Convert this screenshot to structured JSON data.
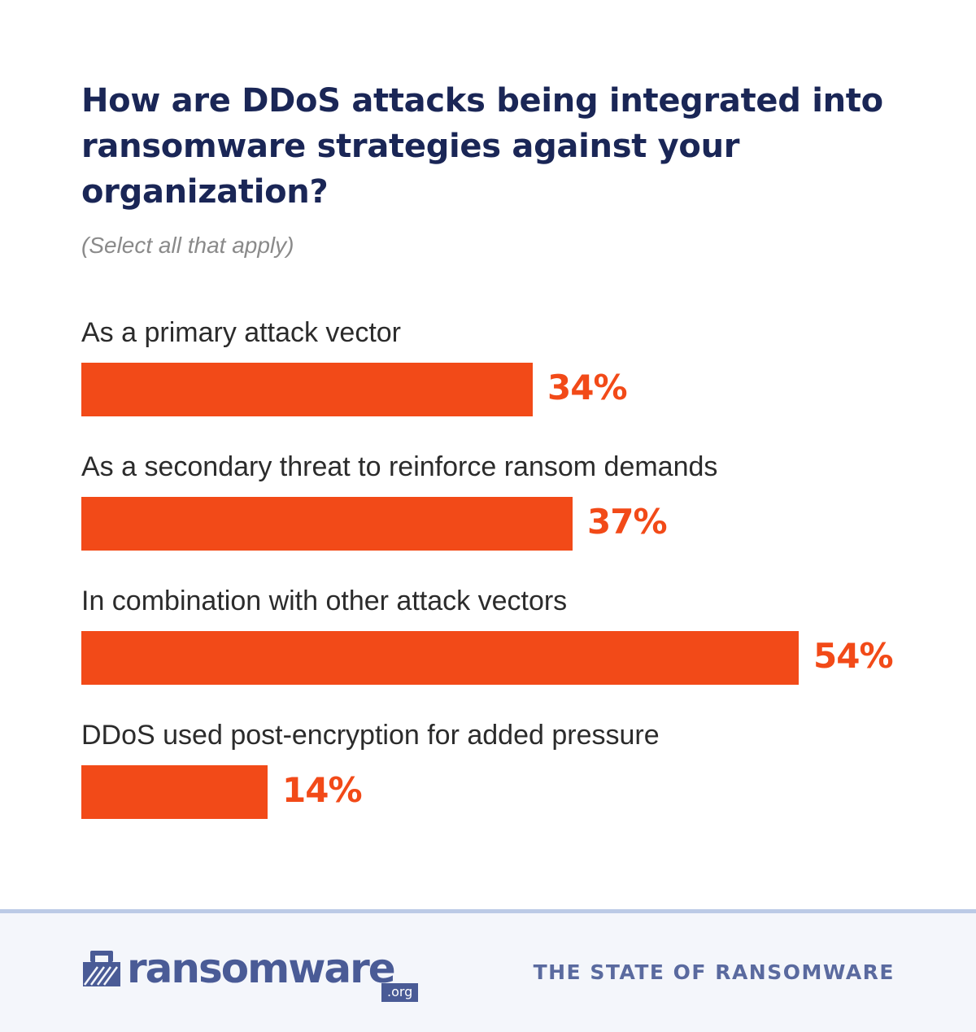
{
  "header": {
    "title": "How are DDoS attacks being integrated into ransomware strategies against your organization?",
    "subtitle": "(Select all that apply)"
  },
  "chart_data": {
    "type": "bar",
    "orientation": "horizontal",
    "title": "How are DDoS attacks being integrated into ransomware strategies against your organization?",
    "subtitle": "(Select all that apply)",
    "categories": [
      "As a primary attack vector",
      "As a secondary threat to reinforce ransom demands",
      "In combination with other attack vectors",
      "DDoS used post-encryption for added pressure"
    ],
    "values": [
      34,
      37,
      54,
      14
    ],
    "value_labels": [
      "34%",
      "37%",
      "54%",
      "14%"
    ],
    "unit": "%",
    "xlim": [
      0,
      54
    ],
    "grid": false,
    "legend": "none",
    "bar_color": "#f24a18"
  },
  "footer": {
    "logo_text": "ransomware",
    "logo_tld": ".org",
    "report_name": "THE STATE OF RANSOMWARE"
  },
  "colors": {
    "accent": "#f24a18",
    "title": "#1a2656",
    "brand": "#4a5b96"
  }
}
